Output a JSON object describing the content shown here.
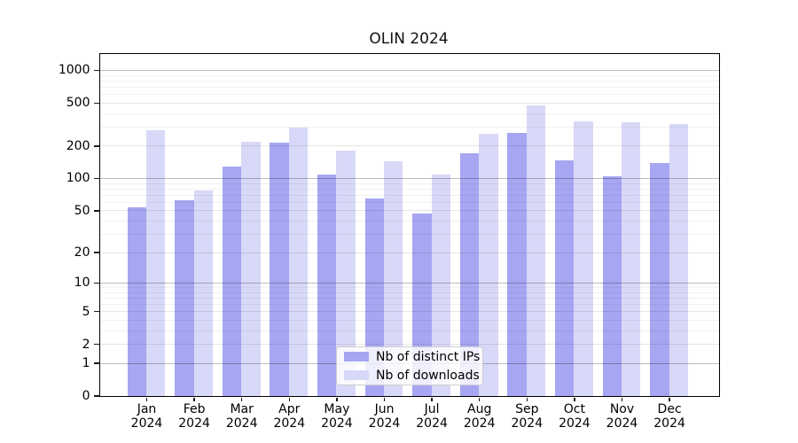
{
  "figure": {
    "title": "OLIN 2024",
    "background": "#ffffff",
    "spine_color": "#000000"
  },
  "chart_data": {
    "type": "bar",
    "title": "OLIN 2024",
    "categories": [
      "Jan 2024",
      "Feb 2024",
      "Mar 2024",
      "Apr 2024",
      "May 2024",
      "Jun 2024",
      "Jul 2024",
      "Aug 2024",
      "Sep 2024",
      "Oct 2024",
      "Nov 2024",
      "Dec 2024"
    ],
    "series": [
      {
        "key": "distinct-ips",
        "name": "Nb of distinct IPs",
        "color": "#a6a6f2",
        "values": [
          53,
          62,
          127,
          215,
          107,
          64,
          47,
          171,
          264,
          145,
          104,
          139
        ]
      },
      {
        "key": "downloads",
        "name": "Nb of downloads",
        "color": "#d8d8f8",
        "values": [
          278,
          77,
          217,
          293,
          181,
          142,
          107,
          258,
          475,
          336,
          328,
          318
        ]
      }
    ],
    "xlabel": "",
    "ylabel": "",
    "y_scale": "log1p",
    "ylim": [
      0,
      1400
    ],
    "y_ticks": [
      0,
      1,
      2,
      5,
      10,
      20,
      50,
      100,
      200,
      500,
      1000
    ],
    "y_decade_ticks": [
      1,
      10,
      100,
      1000
    ],
    "y_minor_ticks": [
      3,
      4,
      6,
      7,
      8,
      9,
      30,
      40,
      60,
      70,
      80,
      90,
      300,
      400,
      600,
      700,
      800,
      900
    ],
    "grid": true,
    "grid_above_bars": true,
    "legend_position": "lower center"
  },
  "style": {
    "grid_minor_color": "rgba(0,0,0,0.055)",
    "grid_labeled_color": "rgba(0,0,0,0.10)",
    "grid_decade_color": "rgba(0,0,0,0.26)",
    "tick_color": "#1a1a1a"
  }
}
